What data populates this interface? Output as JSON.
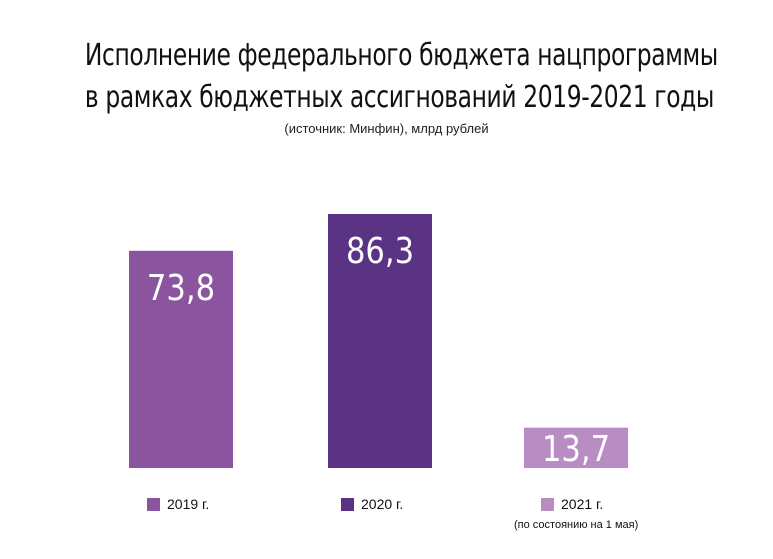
{
  "header": {
    "title_line1": "Исполнение федерального бюджета нацпрограммы",
    "title_line2": "в рамках бюджетных ассигнований 2019-2021 годы",
    "subtitle": "(источник: Минфин), млрд рублей"
  },
  "chart_data": {
    "type": "bar",
    "categories": [
      "2019 г.",
      "2020 г.",
      "2021 г."
    ],
    "values": [
      73.8,
      86.3,
      13.7
    ],
    "value_labels": [
      "73,8",
      "86,3",
      "13,7"
    ],
    "colors": [
      "#8a559e",
      "#5a3384",
      "#b98cc4"
    ],
    "ylim": [
      0,
      86.3
    ],
    "grid": false,
    "legend_placement": "bottom",
    "legend_note": "(по состоянию на 1 мая)"
  }
}
